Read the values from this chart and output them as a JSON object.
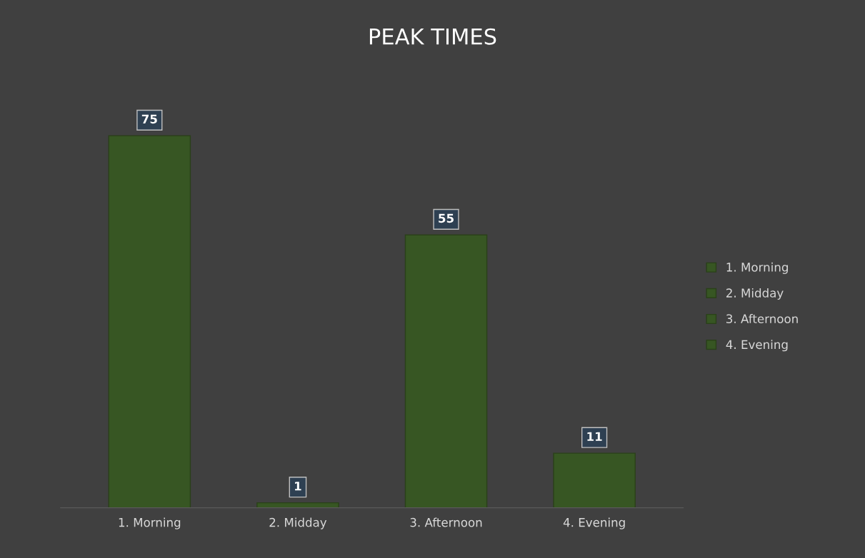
{
  "chart_data": {
    "type": "bar",
    "title": "PEAK TIMES",
    "categories": [
      "1. Morning",
      "2. Midday",
      "3. Afternoon",
      "4. Evening"
    ],
    "series": [
      {
        "name": "1. Morning",
        "color": "#375623",
        "values": [
          75,
          null,
          null,
          null
        ]
      },
      {
        "name": "2. Midday",
        "color": "#375623",
        "values": [
          null,
          1,
          null,
          null
        ]
      },
      {
        "name": "3. Afternoon",
        "color": "#375623",
        "values": [
          null,
          null,
          55,
          null
        ]
      },
      {
        "name": "4. Evening",
        "color": "#375623",
        "values": [
          null,
          null,
          null,
          11
        ]
      }
    ],
    "data_labels": true,
    "legend": "right"
  }
}
